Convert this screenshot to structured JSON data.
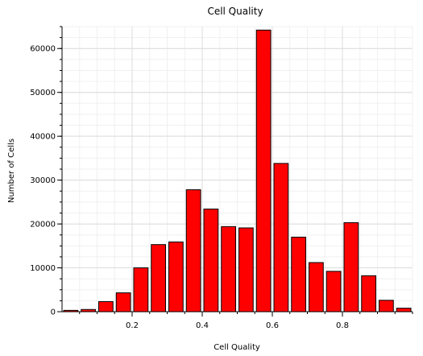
{
  "chart_data": {
    "type": "bar",
    "title": "Cell Quality",
    "xlabel": "Cell Quality",
    "ylabel": "Number of Cells",
    "xlim": [
      0,
      1
    ],
    "ylim": [
      0,
      65000
    ],
    "grid": true,
    "bar_color": "#ff0000",
    "bar_edge_color": "#000000",
    "x_ticks": [
      "0.2",
      "0.4",
      "0.6",
      "0.8"
    ],
    "y_ticks": [
      "0",
      "10000",
      "20000",
      "30000",
      "40000",
      "50000",
      "60000"
    ],
    "bins": [
      {
        "x0": 0.0,
        "x1": 0.05,
        "value": 300
      },
      {
        "x0": 0.05,
        "x1": 0.1,
        "value": 500
      },
      {
        "x0": 0.1,
        "x1": 0.15,
        "value": 2300
      },
      {
        "x0": 0.15,
        "x1": 0.2,
        "value": 4300
      },
      {
        "x0": 0.2,
        "x1": 0.25,
        "value": 10000
      },
      {
        "x0": 0.25,
        "x1": 0.3,
        "value": 15300
      },
      {
        "x0": 0.3,
        "x1": 0.35,
        "value": 15900
      },
      {
        "x0": 0.35,
        "x1": 0.4,
        "value": 27800
      },
      {
        "x0": 0.4,
        "x1": 0.45,
        "value": 23400
      },
      {
        "x0": 0.45,
        "x1": 0.5,
        "value": 19400
      },
      {
        "x0": 0.5,
        "x1": 0.55,
        "value": 19100
      },
      {
        "x0": 0.55,
        "x1": 0.6,
        "value": 64200
      },
      {
        "x0": 0.6,
        "x1": 0.65,
        "value": 33800
      },
      {
        "x0": 0.65,
        "x1": 0.7,
        "value": 17000
      },
      {
        "x0": 0.7,
        "x1": 0.75,
        "value": 11200
      },
      {
        "x0": 0.75,
        "x1": 0.8,
        "value": 9200
      },
      {
        "x0": 0.8,
        "x1": 0.85,
        "value": 20300
      },
      {
        "x0": 0.85,
        "x1": 0.9,
        "value": 8200
      },
      {
        "x0": 0.9,
        "x1": 0.95,
        "value": 2600
      },
      {
        "x0": 0.95,
        "x1": 1.0,
        "value": 800
      }
    ]
  }
}
